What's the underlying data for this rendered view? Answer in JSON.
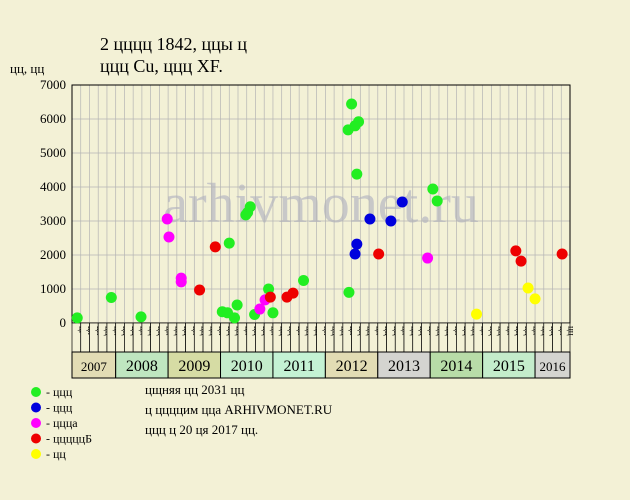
{
  "chart_data": {
    "type": "scatter",
    "title": "2 цццц 1842, ццы ц",
    "subtitle": "ццц Cu, ццц XF.",
    "y_label": "цц, цц",
    "watermark": "arhivmonet.ru",
    "ylim": [
      0,
      7000
    ],
    "yticks": [
      0,
      1000,
      2000,
      3000,
      4000,
      5000,
      6000,
      7000
    ],
    "xlim": [
      0,
      57
    ],
    "grid": true,
    "columns": [
      "цг",
      "ця",
      "цк",
      "цц",
      "цк",
      "цц",
      "цц",
      "цк",
      "цц",
      "цц",
      "цк",
      "цц",
      "цц",
      "цк",
      "цц",
      "цц",
      "цк",
      "цц",
      "цц",
      "цк",
      "цц",
      "цц",
      "цк",
      "цц",
      "цц",
      "цк",
      "цц",
      "цц",
      "цк",
      "цц",
      "цц",
      "цк",
      "цц",
      "цц",
      "цк",
      "цц",
      "цц",
      "цк",
      "цц",
      "цц",
      "цк",
      "цц",
      "цц",
      "цк",
      "цц",
      "цц",
      "цк",
      "цц",
      "цц",
      "цк",
      "цц",
      "цц",
      "цк",
      "цц",
      "цц",
      "цк",
      "цц"
    ],
    "years": [
      {
        "label": "2007",
        "span": 5,
        "color": "#e2dcb4"
      },
      {
        "label": "2008",
        "span": 6,
        "color": "#bfe6c0"
      },
      {
        "label": "2009",
        "span": 6,
        "color": "#d6dca4"
      },
      {
        "label": "2010",
        "span": 6,
        "color": "#c4eccb"
      },
      {
        "label": "2011",
        "span": 6,
        "color": "#c4f2d4"
      },
      {
        "label": "2012",
        "span": 6,
        "color": "#e2dcb4"
      },
      {
        "label": "2013",
        "span": 6,
        "color": "#d4d4d0"
      },
      {
        "label": "2014",
        "span": 6,
        "color": "#b8dca8"
      },
      {
        "label": "2015",
        "span": 6,
        "color": "#c4eccb"
      },
      {
        "label": "2016",
        "span": 4,
        "color": "#d4d4d0"
      }
    ],
    "series": [
      {
        "name": "- ццц",
        "color": "#22ee22",
        "x": [
          0.6,
          4.5,
          7.9,
          18.0,
          17.2,
          17.8,
          18.6,
          18.9,
          19.9,
          20.1,
          20.4,
          20.9,
          22.5,
          23.0,
          26.5,
          31.7,
          31.6,
          32.0,
          32.4,
          32.8,
          32.6,
          41.3,
          41.8
        ],
        "values": [
          150,
          750,
          180,
          2350,
          330,
          300,
          150,
          530,
          3180,
          3250,
          3420,
          250,
          1000,
          300,
          1250,
          900,
          5680,
          6440,
          5800,
          5920,
          4380,
          3940,
          3590
        ]
      },
      {
        "name": "- ццц",
        "color": "#0000dd",
        "x": [
          32.4,
          32.6,
          34.1,
          36.5,
          37.8
        ],
        "values": [
          2030,
          2320,
          3060,
          3000,
          3560
        ]
      },
      {
        "name": "- ццца",
        "color": "#ff00ff",
        "x": [
          10.9,
          11.1,
          12.5,
          12.5,
          21.5,
          22.1,
          40.7
        ],
        "values": [
          3060,
          2530,
          1320,
          1210,
          410,
          680,
          1910
        ]
      },
      {
        "name": "- цццццБ",
        "color": "#ee0000",
        "x": [
          14.6,
          16.4,
          22.7,
          24.6,
          25.3,
          35.1,
          50.8,
          51.4,
          56.1
        ],
        "values": [
          970,
          2240,
          760,
          760,
          880,
          2030,
          2120,
          1820,
          2030
        ]
      },
      {
        "name": "- цц",
        "color": "#ffff00",
        "x": [
          46.3,
          52.2,
          53.0
        ],
        "values": [
          260,
          1030,
          710
        ]
      }
    ],
    "notes": [
      "цщняя цц 2031 цц",
      "ц ццццим цца ARHIVMONET.RU",
      "ццц ц 20 ця 2017 цц."
    ]
  }
}
